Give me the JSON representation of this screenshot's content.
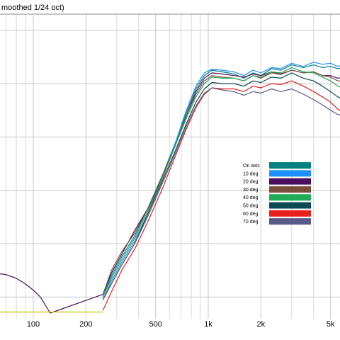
{
  "chart_data": {
    "type": "line",
    "title": "moothed 1/24 oct)",
    "xscale": "log",
    "xlim": [
      60,
      6000
    ],
    "ylim": [
      0,
      5.6
    ],
    "grid": true,
    "legend_placement": "right-center",
    "x_ticks": [
      {
        "value": 100,
        "label": "100"
      },
      {
        "value": 200,
        "label": "200"
      },
      {
        "value": 500,
        "label": "500"
      },
      {
        "value": 1000,
        "label": "1k"
      },
      {
        "value": 2000,
        "label": "2k"
      },
      {
        "value": 5000,
        "label": "5k"
      }
    ],
    "x_minor_ticks": [
      70,
      80,
      90,
      300,
      400,
      600,
      700,
      800,
      900,
      3000,
      4000
    ],
    "y_gridlines": [
      0.3,
      1.3,
      2.3,
      3.3,
      4.3,
      5.3
    ],
    "series": [
      {
        "name": "On axis",
        "color": "#008080",
        "x": [
          250,
          280,
          320,
          380,
          450,
          550,
          650,
          750,
          850,
          950,
          1050,
          1200,
          1400,
          1600,
          1800,
          2000,
          2300,
          2600,
          3000,
          3500,
          4000,
          4500,
          5000,
          5500,
          6000
        ],
        "y": [
          0.3,
          0.7,
          1.05,
          1.45,
          1.95,
          2.6,
          3.2,
          3.75,
          4.2,
          4.45,
          4.55,
          4.52,
          4.48,
          4.4,
          4.5,
          4.45,
          4.58,
          4.55,
          4.65,
          4.6,
          4.65,
          4.6,
          4.62,
          4.58,
          4.6
        ]
      },
      {
        "name": "10 deg",
        "color": "#1e90ff",
        "x": [
          250,
          280,
          320,
          380,
          450,
          550,
          650,
          750,
          850,
          950,
          1050,
          1200,
          1400,
          1600,
          1800,
          2000,
          2300,
          2600,
          3000,
          3500,
          4000,
          4500,
          5000,
          5500,
          6000
        ],
        "y": [
          0.25,
          0.6,
          0.95,
          1.35,
          1.85,
          2.55,
          3.2,
          3.8,
          4.25,
          4.5,
          4.57,
          4.55,
          4.52,
          4.45,
          4.55,
          4.5,
          4.6,
          4.58,
          4.68,
          4.62,
          4.7,
          4.66,
          4.68,
          4.62,
          4.66
        ]
      },
      {
        "name": "20 deg",
        "color": "#4b0d5e",
        "x": [
          60,
          70,
          80,
          90,
          100,
          110,
          125,
          250,
          280,
          320,
          380,
          450,
          550,
          650,
          750,
          850,
          950,
          1050,
          1200,
          1400,
          1600,
          1800,
          2000,
          2300,
          2600,
          3000,
          3500,
          4000,
          4500,
          5000,
          5500,
          6000
        ],
        "y": [
          0.75,
          0.72,
          0.65,
          0.55,
          0.43,
          0.3,
          0.0,
          0.35,
          0.75,
          1.1,
          1.55,
          1.95,
          2.55,
          3.15,
          3.7,
          4.15,
          4.4,
          4.5,
          4.48,
          4.45,
          4.42,
          4.48,
          4.45,
          4.52,
          4.48,
          4.55,
          4.5,
          4.52,
          4.45,
          4.45,
          4.4,
          4.42
        ]
      },
      {
        "name": "30 deg",
        "color": "#7a4e3a",
        "x": [
          250,
          280,
          320,
          380,
          450,
          550,
          650,
          750,
          850,
          950,
          1050,
          1200,
          1400,
          1600,
          1800,
          2000,
          2300,
          2600,
          3000,
          3500,
          4000,
          4500,
          5000,
          5500,
          6000
        ],
        "y": [
          0.35,
          0.8,
          1.15,
          1.5,
          1.95,
          2.6,
          3.15,
          3.7,
          4.1,
          4.35,
          4.45,
          4.42,
          4.4,
          4.35,
          4.45,
          4.4,
          4.5,
          4.47,
          4.55,
          4.5,
          4.52,
          4.45,
          4.42,
          4.35,
          4.35
        ]
      },
      {
        "name": "40 deg",
        "color": "#22aa55",
        "x": [
          250,
          280,
          320,
          380,
          450,
          550,
          650,
          750,
          850,
          950,
          1050,
          1200,
          1400,
          1600,
          1800,
          2000,
          2300,
          2600,
          3000,
          3500,
          4000,
          4500,
          5000,
          5500,
          6000
        ],
        "y": [
          0.3,
          0.65,
          1.0,
          1.4,
          1.9,
          2.55,
          3.15,
          3.65,
          4.05,
          4.3,
          4.42,
          4.4,
          4.4,
          4.35,
          4.45,
          4.42,
          4.52,
          4.5,
          4.6,
          4.52,
          4.5,
          4.42,
          4.35,
          4.25,
          4.2
        ]
      },
      {
        "name": "50 deg",
        "color": "#0b4a55",
        "x": [
          250,
          280,
          320,
          380,
          450,
          550,
          650,
          750,
          850,
          950,
          1050,
          1200,
          1400,
          1600,
          1800,
          2000,
          2300,
          2600,
          3000,
          3500,
          4000,
          4500,
          5000,
          5500,
          6000
        ],
        "y": [
          0.25,
          0.55,
          0.9,
          1.3,
          1.85,
          2.5,
          3.05,
          3.55,
          3.95,
          4.2,
          4.32,
          4.3,
          4.3,
          4.25,
          4.35,
          4.32,
          4.42,
          4.4,
          4.5,
          4.4,
          4.35,
          4.25,
          4.15,
          4.05,
          4.0
        ]
      },
      {
        "name": "60 deg",
        "color": "#e8201c",
        "x": [
          250,
          280,
          320,
          380,
          450,
          550,
          650,
          750,
          850,
          950,
          1050,
          1200,
          1400,
          1600,
          1800,
          2000,
          2300,
          2600,
          3000,
          3500,
          4000,
          4500,
          5000,
          5500,
          6000
        ],
        "y": [
          0.05,
          0.4,
          0.8,
          1.2,
          1.7,
          2.35,
          2.95,
          3.45,
          3.85,
          4.1,
          4.22,
          4.2,
          4.2,
          4.15,
          4.25,
          4.22,
          4.3,
          4.28,
          4.35,
          4.25,
          4.15,
          4.05,
          3.95,
          3.82,
          3.75
        ]
      },
      {
        "name": "70 deg",
        "color": "#5a5a8a",
        "x": [
          250,
          280,
          320,
          380,
          450,
          550,
          650,
          750,
          850,
          950,
          1050,
          1200,
          1400,
          1600,
          1800,
          2000,
          2300,
          2600,
          3000,
          3500,
          4000,
          4500,
          5000,
          5500,
          6000
        ],
        "y": [
          0.25,
          0.55,
          0.9,
          1.3,
          1.8,
          2.45,
          3.0,
          3.5,
          3.88,
          4.12,
          4.22,
          4.18,
          4.15,
          4.08,
          4.15,
          4.12,
          4.2,
          4.15,
          4.2,
          4.1,
          4.0,
          3.9,
          3.8,
          3.72,
          3.7
        ]
      },
      {
        "name": "",
        "color": "#c8c800",
        "x": [
          60,
          250
        ],
        "y": [
          0.02,
          0.02
        ]
      }
    ]
  }
}
